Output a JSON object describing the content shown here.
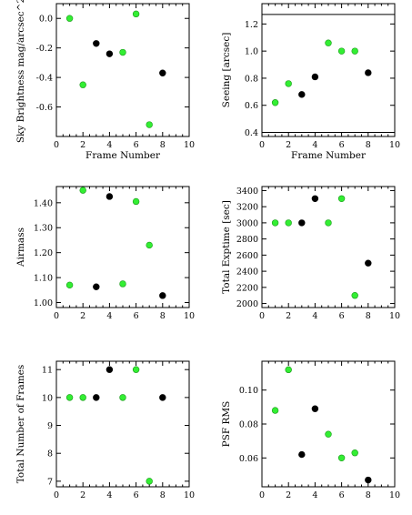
{
  "colors": {
    "green": "#33ee33",
    "black": "#000000"
  },
  "chart_data": [
    {
      "type": "scatter",
      "xlabel": "Frame Number",
      "ylabel": "Sky Brightness mag/arcsec^2",
      "xlim": [
        0,
        10
      ],
      "ylim": [
        -0.8,
        0.1
      ],
      "xticks": [
        "0",
        "2",
        "4",
        "6",
        "8",
        "10"
      ],
      "xtick_values": [
        0,
        2,
        4,
        6,
        8,
        10
      ],
      "yticks": [
        "0.0",
        "-0.2",
        "-0.4",
        "-0.6"
      ],
      "ytick_values": [
        0.0,
        -0.2,
        -0.4,
        -0.6
      ],
      "hlines": [],
      "points": [
        {
          "x": 1,
          "y": 0.0,
          "color": "green"
        },
        {
          "x": 2,
          "y": -0.45,
          "color": "green"
        },
        {
          "x": 3,
          "y": -0.17,
          "color": "black"
        },
        {
          "x": 4,
          "y": -0.24,
          "color": "black"
        },
        {
          "x": 5,
          "y": -0.23,
          "color": "green"
        },
        {
          "x": 6,
          "y": 0.03,
          "color": "green"
        },
        {
          "x": 7,
          "y": -0.72,
          "color": "green"
        },
        {
          "x": 8,
          "y": -0.37,
          "color": "black"
        }
      ]
    },
    {
      "type": "scatter",
      "xlabel": "Frame Number",
      "ylabel": "Seeing [arcsec]",
      "xlim": [
        0,
        10
      ],
      "ylim": [
        0.37,
        1.35
      ],
      "xticks": [
        "0",
        "2",
        "4",
        "6",
        "8",
        "10"
      ],
      "xtick_values": [
        0,
        2,
        4,
        6,
        8,
        10
      ],
      "yticks": [
        "0.4",
        "0.6",
        "0.8",
        "1.0",
        "1.2"
      ],
      "ytick_values": [
        0.4,
        0.6,
        0.8,
        1.0,
        1.2
      ],
      "hlines": [
        1.27,
        0.4
      ],
      "points": [
        {
          "x": 1,
          "y": 0.62,
          "color": "green"
        },
        {
          "x": 2,
          "y": 0.76,
          "color": "green"
        },
        {
          "x": 3,
          "y": 0.68,
          "color": "black"
        },
        {
          "x": 4,
          "y": 0.81,
          "color": "black"
        },
        {
          "x": 5,
          "y": 1.06,
          "color": "green"
        },
        {
          "x": 6,
          "y": 1.0,
          "color": "green"
        },
        {
          "x": 7,
          "y": 1.0,
          "color": "green"
        },
        {
          "x": 8,
          "y": 0.84,
          "color": "black"
        }
      ]
    },
    {
      "type": "scatter",
      "xlabel": "",
      "ylabel": "Airmass",
      "xlim": [
        0,
        10
      ],
      "ylim": [
        0.98,
        1.465
      ],
      "xticks": [
        "0",
        "2",
        "4",
        "6",
        "8",
        "10"
      ],
      "xtick_values": [
        0,
        2,
        4,
        6,
        8,
        10
      ],
      "yticks": [
        "1.00",
        "1.10",
        "1.20",
        "1.30",
        "1.40"
      ],
      "ytick_values": [
        1.0,
        1.1,
        1.2,
        1.3,
        1.4
      ],
      "hlines": [],
      "points": [
        {
          "x": 1,
          "y": 1.07,
          "color": "green"
        },
        {
          "x": 2,
          "y": 1.45,
          "color": "green"
        },
        {
          "x": 3,
          "y": 1.063,
          "color": "black"
        },
        {
          "x": 4,
          "y": 1.425,
          "color": "black"
        },
        {
          "x": 5,
          "y": 1.075,
          "color": "green"
        },
        {
          "x": 6,
          "y": 1.405,
          "color": "green"
        },
        {
          "x": 7,
          "y": 1.23,
          "color": "green"
        },
        {
          "x": 8,
          "y": 1.028,
          "color": "black"
        }
      ]
    },
    {
      "type": "scatter",
      "xlabel": "",
      "ylabel": "Total Exptime [sec]",
      "xlim": [
        0,
        10
      ],
      "ylim": [
        1950,
        3450
      ],
      "xticks": [
        "0",
        "2",
        "4",
        "6",
        "8",
        "10"
      ],
      "xtick_values": [
        0,
        2,
        4,
        6,
        8,
        10
      ],
      "yticks": [
        "2000",
        "2200",
        "2400",
        "2600",
        "2800",
        "3000",
        "3200",
        "3400"
      ],
      "ytick_values": [
        2000,
        2200,
        2400,
        2600,
        2800,
        3000,
        3200,
        3400
      ],
      "hlines": [],
      "points": [
        {
          "x": 1,
          "y": 3000,
          "color": "green"
        },
        {
          "x": 2,
          "y": 3000,
          "color": "green"
        },
        {
          "x": 3,
          "y": 3000,
          "color": "black"
        },
        {
          "x": 4,
          "y": 3300,
          "color": "black"
        },
        {
          "x": 5,
          "y": 3000,
          "color": "green"
        },
        {
          "x": 6,
          "y": 3300,
          "color": "green"
        },
        {
          "x": 7,
          "y": 2100,
          "color": "green"
        },
        {
          "x": 8,
          "y": 2500,
          "color": "black"
        }
      ]
    },
    {
      "type": "scatter",
      "xlabel": "",
      "ylabel": "Total Number of Frames",
      "xlim": [
        0,
        10
      ],
      "ylim": [
        6.8,
        11.3
      ],
      "xticks": [
        "0",
        "2",
        "4",
        "6",
        "8",
        "10"
      ],
      "xtick_values": [
        0,
        2,
        4,
        6,
        8,
        10
      ],
      "yticks": [
        "7",
        "8",
        "9",
        "10",
        "11"
      ],
      "ytick_values": [
        7,
        8,
        9,
        10,
        11
      ],
      "hlines": [],
      "points": [
        {
          "x": 1,
          "y": 10,
          "color": "green"
        },
        {
          "x": 2,
          "y": 10,
          "color": "green"
        },
        {
          "x": 3,
          "y": 10,
          "color": "black"
        },
        {
          "x": 4,
          "y": 11,
          "color": "black"
        },
        {
          "x": 5,
          "y": 10,
          "color": "green"
        },
        {
          "x": 6,
          "y": 11,
          "color": "green"
        },
        {
          "x": 7,
          "y": 7,
          "color": "green"
        },
        {
          "x": 8,
          "y": 10,
          "color": "black"
        }
      ]
    },
    {
      "type": "scatter",
      "xlabel": "",
      "ylabel": "PSF RMS",
      "xlim": [
        0,
        10
      ],
      "ylim": [
        0.043,
        0.117
      ],
      "xticks": [
        "0",
        "2",
        "4",
        "6",
        "8",
        "10"
      ],
      "xtick_values": [
        0,
        2,
        4,
        6,
        8,
        10
      ],
      "yticks": [
        "0.06",
        "0.08",
        "0.10"
      ],
      "ytick_values": [
        0.06,
        0.08,
        0.1
      ],
      "hlines": [],
      "points": [
        {
          "x": 1,
          "y": 0.088,
          "color": "green"
        },
        {
          "x": 2,
          "y": 0.112,
          "color": "green"
        },
        {
          "x": 3,
          "y": 0.062,
          "color": "black"
        },
        {
          "x": 4,
          "y": 0.089,
          "color": "black"
        },
        {
          "x": 5,
          "y": 0.074,
          "color": "green"
        },
        {
          "x": 6,
          "y": 0.06,
          "color": "green"
        },
        {
          "x": 7,
          "y": 0.063,
          "color": "green"
        },
        {
          "x": 8,
          "y": 0.047,
          "color": "black"
        }
      ]
    }
  ]
}
